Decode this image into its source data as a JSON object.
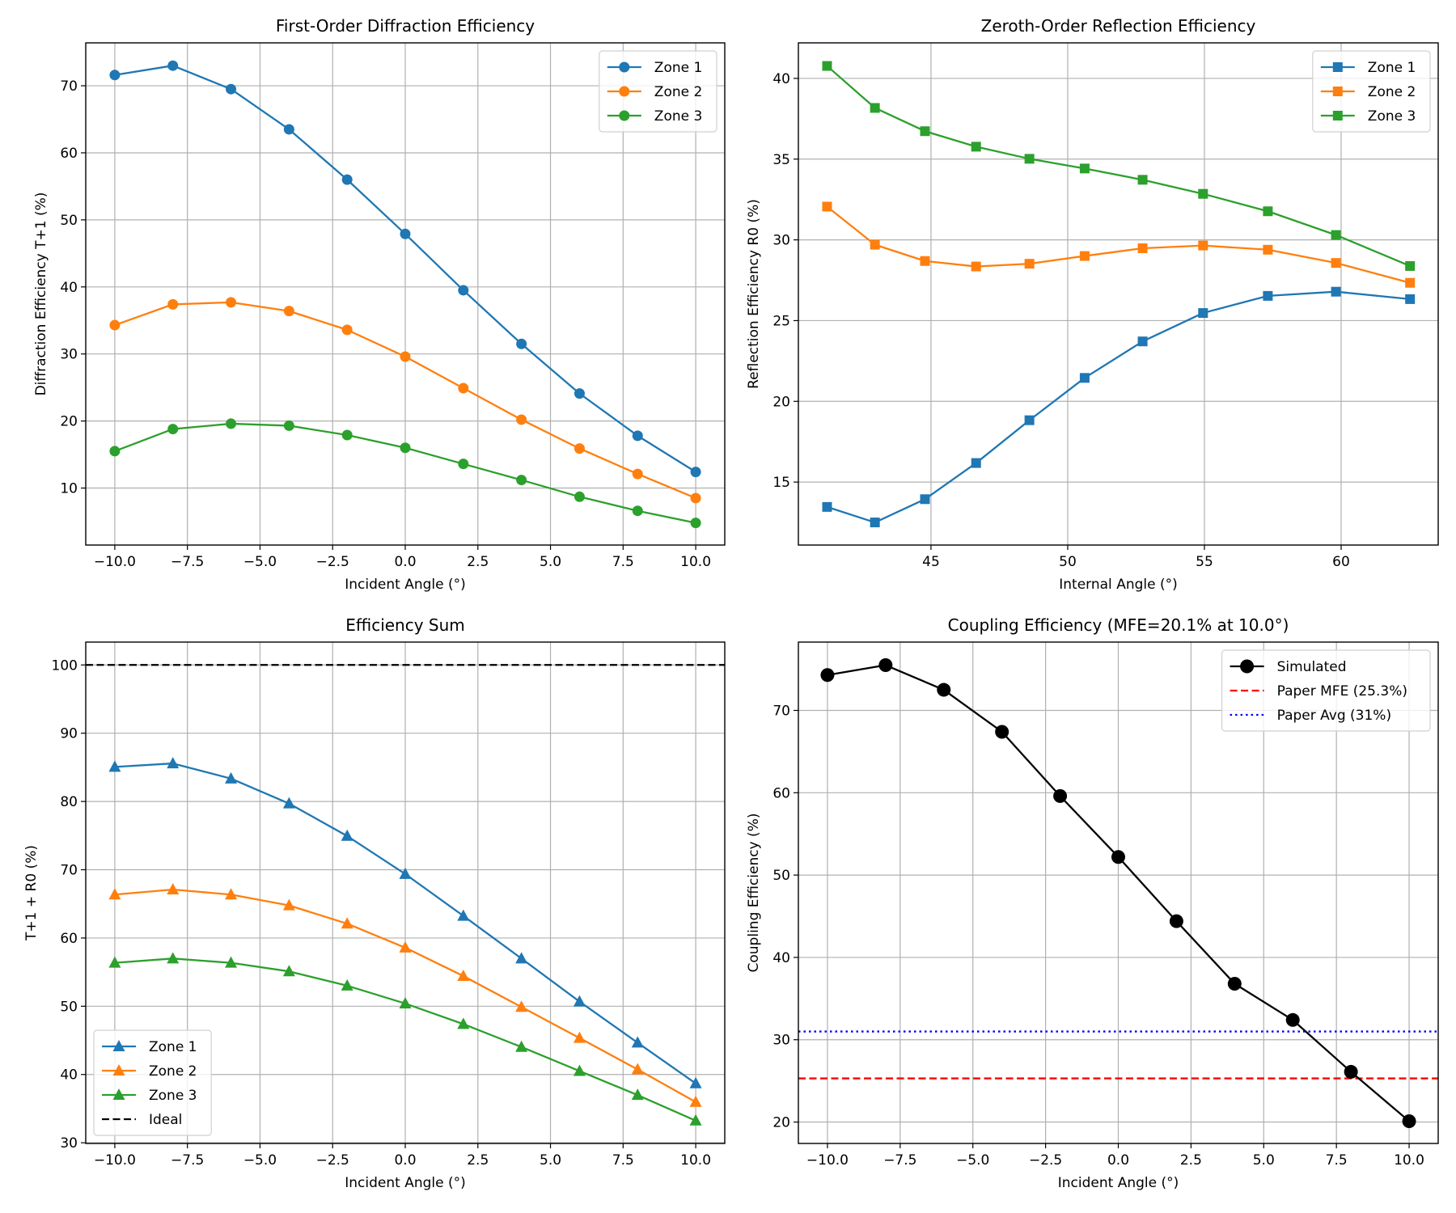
{
  "chart_data": [
    {
      "type": "line",
      "title": "First-Order Diffraction Efficiency",
      "xlabel": "Incident Angle (°)",
      "ylabel": "Diffraction Efficiency T+1 (%)",
      "xlim": [
        -11.0,
        11.0
      ],
      "ylim": [
        1.5,
        76.4
      ],
      "xticks": [
        -10,
        -7.5,
        -5,
        -2.5,
        0,
        2.5,
        5,
        7.5,
        10
      ],
      "xtick_labels": [
        "−10.0",
        "−7.5",
        "−5.0",
        "−2.5",
        "0.0",
        "2.5",
        "5.0",
        "7.5",
        "10.0"
      ],
      "yticks": [
        10,
        20,
        30,
        40,
        50,
        60,
        70
      ],
      "ytick_labels": [
        "10",
        "20",
        "30",
        "40",
        "50",
        "60",
        "70"
      ],
      "grid": true,
      "legend": "upper-right",
      "x": [
        -10,
        -8,
        -6,
        -4,
        -2,
        0,
        2,
        4,
        6,
        8,
        10
      ],
      "series": [
        {
          "name": "Zone 1",
          "color": "#1f77b4",
          "marker": "circle",
          "dash": "solid",
          "values": [
            71.6,
            73.0,
            69.5,
            63.5,
            56.0,
            47.9,
            39.5,
            31.5,
            24.1,
            17.8,
            12.4
          ]
        },
        {
          "name": "Zone 2",
          "color": "#ff7f0e",
          "marker": "circle",
          "dash": "solid",
          "values": [
            34.3,
            37.4,
            37.7,
            36.4,
            33.6,
            29.6,
            24.9,
            20.2,
            15.9,
            12.1,
            8.5
          ]
        },
        {
          "name": "Zone 3",
          "color": "#2ca02c",
          "marker": "circle",
          "dash": "solid",
          "values": [
            15.5,
            18.8,
            19.6,
            19.3,
            17.9,
            16.0,
            13.6,
            11.2,
            8.7,
            6.6,
            4.8
          ]
        }
      ]
    },
    {
      "type": "line",
      "title": "Zeroth-Order Reflection Efficiency",
      "xlabel": "Internal Angle (°)",
      "ylabel": "Reflection Efficiency R0 (%)",
      "xlim": [
        40.15,
        63.55
      ],
      "ylim": [
        11.1,
        42.2
      ],
      "xticks": [
        45,
        50,
        55,
        60
      ],
      "xtick_labels": [
        "45",
        "50",
        "55",
        "60"
      ],
      "yticks": [
        15,
        20,
        25,
        30,
        35,
        40
      ],
      "ytick_labels": [
        "15",
        "20",
        "25",
        "30",
        "35",
        "40"
      ],
      "grid": true,
      "legend": "upper-right",
      "x": [
        41.2,
        42.95,
        44.78,
        46.65,
        48.6,
        50.62,
        52.74,
        54.95,
        57.32,
        59.81,
        62.52
      ],
      "series": [
        {
          "name": "Zone 1",
          "color": "#1f77b4",
          "marker": "square",
          "dash": "solid",
          "values": [
            13.46,
            12.5,
            13.94,
            16.18,
            18.83,
            21.45,
            23.71,
            25.47,
            26.53,
            26.79,
            26.33
          ]
        },
        {
          "name": "Zone 2",
          "color": "#ff7f0e",
          "marker": "square",
          "dash": "solid",
          "values": [
            32.06,
            29.7,
            28.69,
            28.35,
            28.52,
            29.0,
            29.48,
            29.65,
            29.39,
            28.57,
            27.34
          ]
        },
        {
          "name": "Zone 3",
          "color": "#2ca02c",
          "marker": "square",
          "dash": "solid",
          "values": [
            40.77,
            38.17,
            36.73,
            35.77,
            35.02,
            34.42,
            33.72,
            32.85,
            31.77,
            30.3,
            28.38
          ]
        }
      ]
    },
    {
      "type": "line",
      "title": "Efficiency Sum",
      "xlabel": "Incident Angle (°)",
      "ylabel": "T+1 + R0 (%)",
      "xlim": [
        -11.0,
        11.0
      ],
      "ylim": [
        29.9,
        103.35
      ],
      "xticks": [
        -10,
        -7.5,
        -5,
        -2.5,
        0,
        2.5,
        5,
        7.5,
        10
      ],
      "xtick_labels": [
        "−10.0",
        "−7.5",
        "−5.0",
        "−2.5",
        "0.0",
        "2.5",
        "5.0",
        "7.5",
        "10.0"
      ],
      "yticks": [
        30,
        40,
        50,
        60,
        70,
        80,
        90,
        100
      ],
      "ytick_labels": [
        "30",
        "40",
        "50",
        "60",
        "70",
        "80",
        "90",
        "100"
      ],
      "grid": true,
      "legend": "lower-left",
      "x": [
        -10,
        -8,
        -6,
        -4,
        -2,
        0,
        2,
        4,
        6,
        8,
        10
      ],
      "series": [
        {
          "name": "Zone 1",
          "color": "#1f77b4",
          "marker": "triangle",
          "dash": "solid",
          "values": [
            85.06,
            85.57,
            83.35,
            79.7,
            74.94,
            69.37,
            63.24,
            56.99,
            50.68,
            44.66,
            38.69
          ]
        },
        {
          "name": "Zone 2",
          "color": "#ff7f0e",
          "marker": "triangle",
          "dash": "solid",
          "values": [
            66.36,
            67.1,
            66.36,
            64.77,
            62.1,
            58.58,
            54.43,
            49.89,
            45.34,
            40.74,
            35.97
          ]
        },
        {
          "name": "Zone 3",
          "color": "#2ca02c",
          "marker": "triangle",
          "dash": "solid",
          "values": [
            56.36,
            56.99,
            56.36,
            55.11,
            53.01,
            50.4,
            47.39,
            44.03,
            40.51,
            36.99,
            33.24
          ]
        }
      ],
      "hlines": [
        {
          "name": "Ideal",
          "y": 100,
          "color": "#000000",
          "dash": "dashed"
        }
      ]
    },
    {
      "type": "line",
      "title": "Coupling Efficiency (MFE=20.1% at 10.0°)",
      "xlabel": "Incident Angle (°)",
      "ylabel": "Coupling Efficiency (%)",
      "xlim": [
        -11.0,
        11.0
      ],
      "ylim": [
        17.4,
        78.3
      ],
      "xticks": [
        -10,
        -7.5,
        -5,
        -2.5,
        0,
        2.5,
        5,
        7.5,
        10
      ],
      "xtick_labels": [
        "−10.0",
        "−7.5",
        "−5.0",
        "−2.5",
        "0.0",
        "2.5",
        "5.0",
        "7.5",
        "10.0"
      ],
      "yticks": [
        20,
        30,
        40,
        50,
        60,
        70
      ],
      "ytick_labels": [
        "20",
        "30",
        "40",
        "50",
        "60",
        "70"
      ],
      "grid": true,
      "legend": "upper-right",
      "x": [
        -10,
        -8,
        -6,
        -4,
        -2,
        0,
        2,
        4,
        6,
        8,
        10
      ],
      "series": [
        {
          "name": "Simulated",
          "color": "#000000",
          "marker": "bigcircle",
          "dash": "solid",
          "values": [
            74.3,
            75.5,
            72.5,
            67.4,
            59.6,
            52.2,
            44.4,
            36.8,
            32.4,
            26.1,
            20.1
          ]
        }
      ],
      "hlines": [
        {
          "name": "Paper MFE (25.3%)",
          "y": 25.3,
          "color": "#ff0000",
          "dash": "dashed"
        },
        {
          "name": "Paper Avg (31%)",
          "y": 31,
          "color": "#0000ff",
          "dash": "dotted"
        }
      ]
    }
  ]
}
